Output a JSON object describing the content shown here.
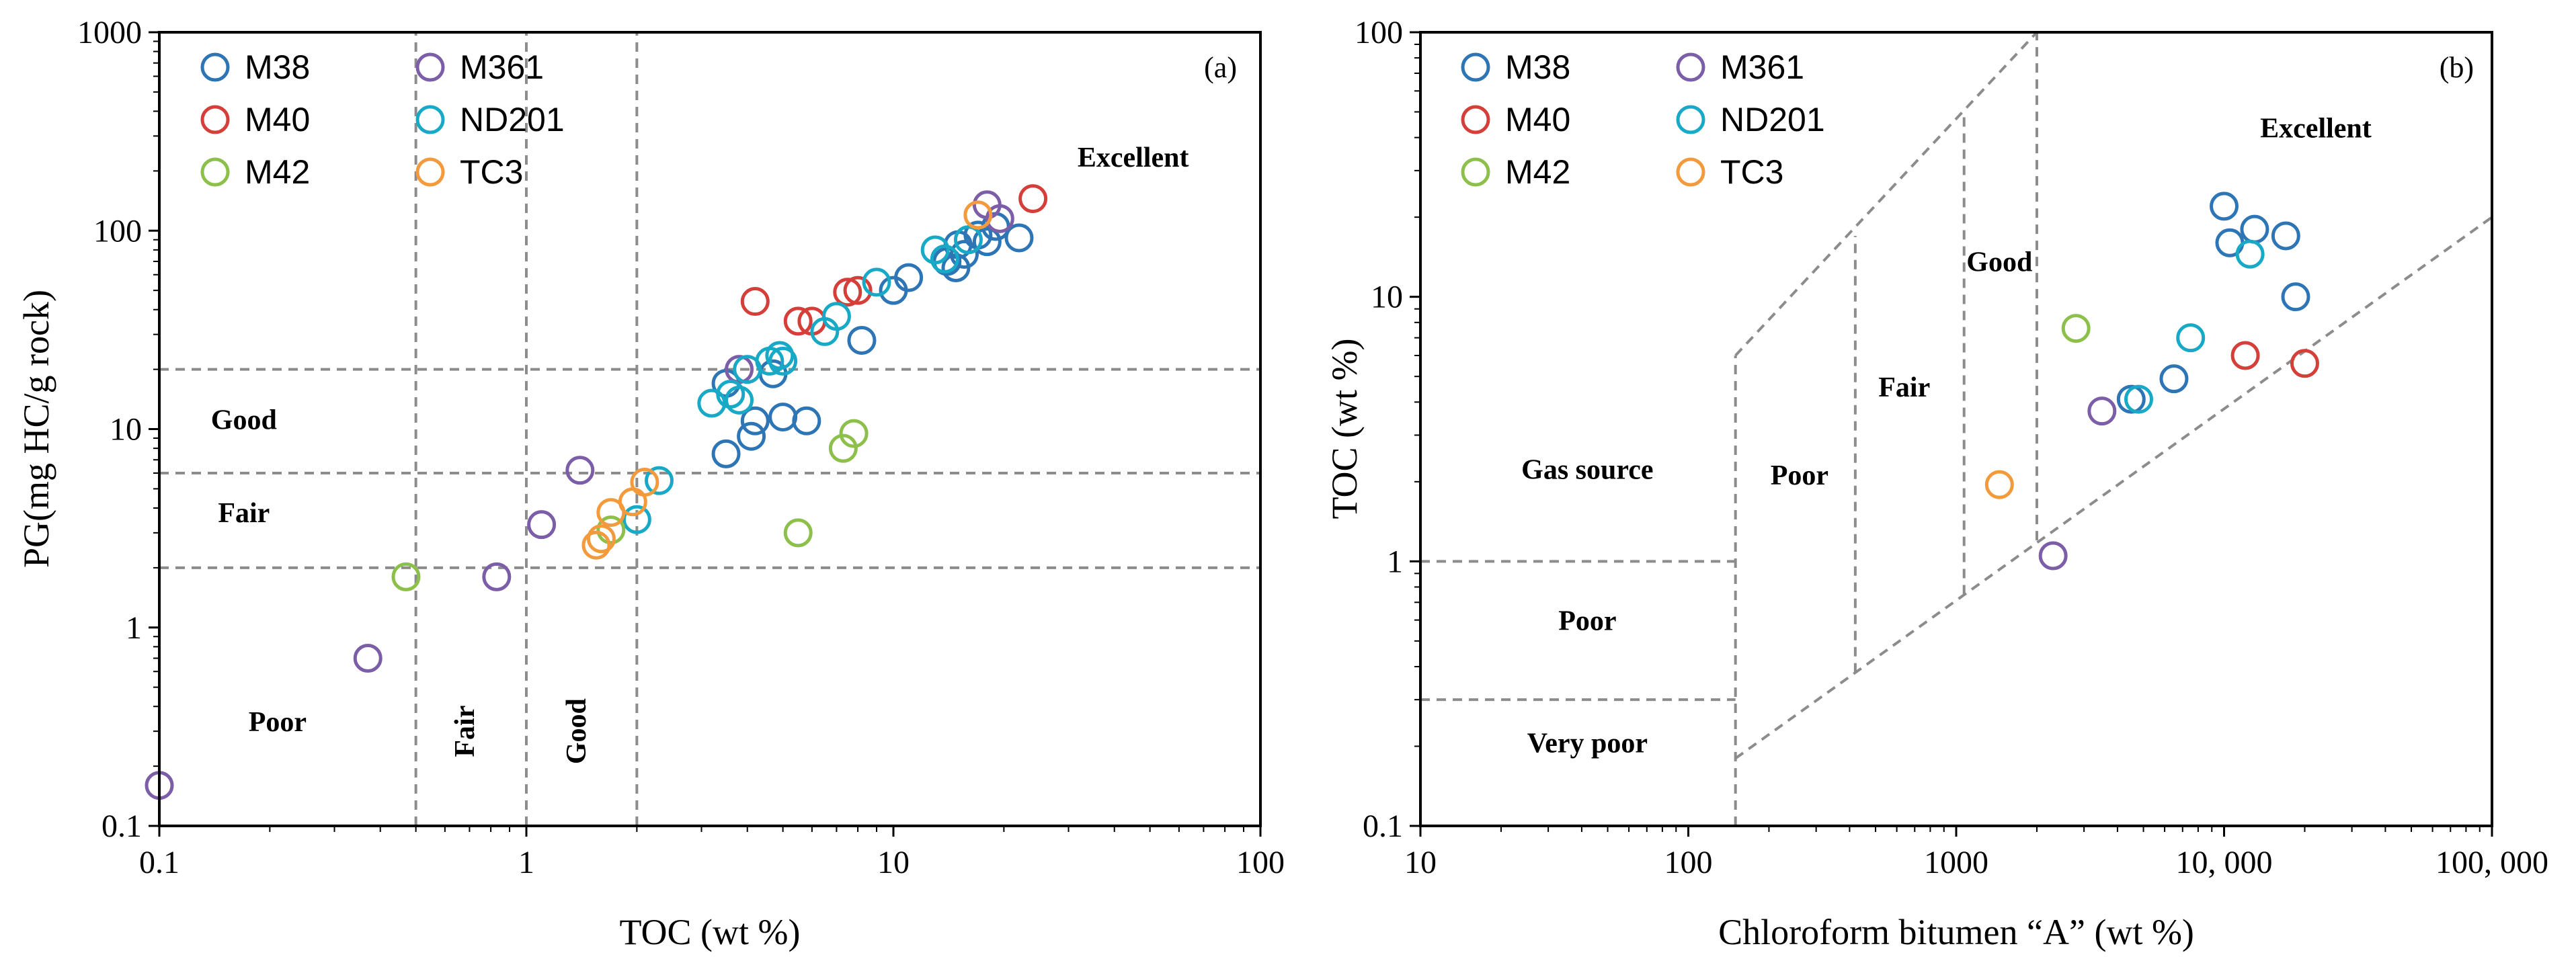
{
  "colors": {
    "M38": "#2e75b6",
    "M361": "#7b5ea7",
    "M40": "#d43f3a",
    "ND201": "#17a9c6",
    "M42": "#8dc04a",
    "TC3": "#f39b3c"
  },
  "chart_data": [
    {
      "id": "a",
      "type": "scatter",
      "panel_label": "(a)",
      "xlabel": "TOC (wt %)",
      "ylabel": "PG(mg HC/g rock)",
      "xscale": "log",
      "yscale": "log",
      "xlim": [
        0.1,
        100
      ],
      "ylim": [
        0.1,
        1000
      ],
      "x_ticks": [
        {
          "value": 0.1,
          "label": "0.1"
        },
        {
          "value": 1,
          "label": "1"
        },
        {
          "value": 10,
          "label": "10"
        },
        {
          "value": 100,
          "label": "100"
        }
      ],
      "y_ticks": [
        {
          "value": 0.1,
          "label": "0.1"
        },
        {
          "value": 1,
          "label": "1"
        },
        {
          "value": 10,
          "label": "10"
        },
        {
          "value": 100,
          "label": "100"
        },
        {
          "value": 1000,
          "label": "1000"
        }
      ],
      "legend_position": "top-left",
      "legend": [
        "M38",
        "M361",
        "M40",
        "ND201",
        "M42",
        "TC3"
      ],
      "boundary_lines": [
        {
          "kind": "vertical",
          "x": 0.5,
          "y_range": [
            0.1,
            1000
          ]
        },
        {
          "kind": "vertical",
          "x": 1,
          "y_range": [
            0.1,
            1000
          ]
        },
        {
          "kind": "vertical",
          "x": 2,
          "y_range": [
            0.1,
            1000
          ]
        },
        {
          "kind": "horizontal",
          "y": 2,
          "x_range": [
            0.1,
            100
          ]
        },
        {
          "kind": "horizontal",
          "y": 6,
          "x_range": [
            0.1,
            100
          ]
        },
        {
          "kind": "horizontal",
          "y": 20,
          "x_range": [
            0.1,
            100
          ]
        }
      ],
      "annotations": [
        {
          "text": "Excellent",
          "x": 45,
          "y": 210,
          "rotate": false
        },
        {
          "text": "Good",
          "x": 0.17,
          "y": 10,
          "rotate": false
        },
        {
          "text": "Fair",
          "x": 0.17,
          "y": 3.4,
          "rotate": false
        },
        {
          "text": "Poor",
          "x": 0.21,
          "y": 0.3,
          "rotate": false
        },
        {
          "text": "Fair",
          "x": 0.72,
          "y": 0.3,
          "rotate": true
        },
        {
          "text": "Good",
          "x": 1.45,
          "y": 0.3,
          "rotate": true
        }
      ],
      "series": [
        {
          "name": "M38",
          "points": [
            [
              3.5,
              7.5
            ],
            [
              4.1,
              9.2
            ],
            [
              4.2,
              11
            ],
            [
              5,
              11.5
            ],
            [
              5.8,
              11
            ],
            [
              3.5,
              17
            ],
            [
              4.7,
              19
            ],
            [
              8.2,
              28
            ],
            [
              10,
              50
            ],
            [
              11,
              58
            ],
            [
              14,
              70
            ],
            [
              14.8,
              65
            ],
            [
              15,
              85
            ],
            [
              15.6,
              76
            ],
            [
              17,
              95
            ],
            [
              18,
              88
            ],
            [
              19,
              105
            ],
            [
              22,
              92
            ]
          ]
        },
        {
          "name": "M361",
          "points": [
            [
              0.1,
              0.16
            ],
            [
              0.37,
              0.7
            ],
            [
              0.83,
              1.8
            ],
            [
              1.1,
              3.3
            ],
            [
              1.4,
              6.2
            ],
            [
              3.8,
              20
            ],
            [
              18,
              135
            ],
            [
              19.5,
              115
            ]
          ]
        },
        {
          "name": "M40",
          "points": [
            [
              4.2,
              44
            ],
            [
              5.5,
              35
            ],
            [
              6,
              35
            ],
            [
              7.5,
              49
            ],
            [
              8,
              50
            ],
            [
              24,
              145
            ]
          ]
        },
        {
          "name": "ND201",
          "points": [
            [
              2,
              3.5
            ],
            [
              2.3,
              5.5
            ],
            [
              3.2,
              13.5
            ],
            [
              3.6,
              15
            ],
            [
              3.8,
              14
            ],
            [
              4,
              20
            ],
            [
              4.6,
              22
            ],
            [
              4.9,
              23.5
            ],
            [
              5,
              22
            ],
            [
              6.5,
              31
            ],
            [
              7,
              37
            ],
            [
              9,
              55
            ],
            [
              13,
              80
            ],
            [
              13.8,
              72
            ],
            [
              16,
              90
            ]
          ]
        },
        {
          "name": "M42",
          "points": [
            [
              0.47,
              1.8
            ],
            [
              1.7,
              3.1
            ],
            [
              5.5,
              3
            ],
            [
              7.3,
              8
            ],
            [
              7.8,
              9.5
            ]
          ]
        },
        {
          "name": "TC3",
          "points": [
            [
              1.55,
              2.6
            ],
            [
              1.6,
              2.8
            ],
            [
              1.7,
              3.8
            ],
            [
              1.95,
              4.3
            ],
            [
              2.1,
              5.4
            ],
            [
              17,
              120
            ]
          ]
        }
      ]
    },
    {
      "id": "b",
      "type": "scatter",
      "panel_label": "(b)",
      "xlabel": "Chloroform bitumen “A” (wt %)",
      "ylabel": "TOC (wt %)",
      "xscale": "log",
      "yscale": "log",
      "xlim": [
        10,
        100000
      ],
      "ylim": [
        0.1,
        100
      ],
      "x_ticks": [
        {
          "value": 10,
          "label": "10"
        },
        {
          "value": 100,
          "label": "100"
        },
        {
          "value": 1000,
          "label": "1000"
        },
        {
          "value": 10000,
          "label": "10, 000"
        },
        {
          "value": 100000,
          "label": "100, 000"
        }
      ],
      "y_ticks": [
        {
          "value": 0.1,
          "label": "0.1"
        },
        {
          "value": 1,
          "label": "1"
        },
        {
          "value": 10,
          "label": "10"
        },
        {
          "value": 100,
          "label": "100"
        }
      ],
      "legend_position": "top-left",
      "legend": [
        "M38",
        "M361",
        "M40",
        "ND201",
        "M42",
        "TC3"
      ],
      "boundary_lines": [
        {
          "kind": "vertical",
          "x": 150,
          "y_range": [
            0.1,
            6
          ]
        },
        {
          "kind": "horizontal",
          "y": 1,
          "x_range": [
            10,
            150
          ]
        },
        {
          "kind": "horizontal",
          "y": 0.3,
          "x_range": [
            10,
            150
          ]
        },
        {
          "kind": "segment",
          "from": [
            150,
            6
          ],
          "to": [
            2000,
            100
          ]
        },
        {
          "kind": "segment",
          "from": [
            150,
            0.18
          ],
          "to": [
            100000,
            20
          ]
        },
        {
          "kind": "segment",
          "from": [
            420,
            0.38
          ],
          "to": [
            420,
            17
          ]
        },
        {
          "kind": "segment",
          "from": [
            1070,
            0.75
          ],
          "to": [
            1070,
            48
          ]
        },
        {
          "kind": "segment",
          "from": [
            2000,
            1.2
          ],
          "to": [
            2000,
            100
          ]
        }
      ],
      "annotations": [
        {
          "text": "Excellent",
          "x": 22000,
          "y": 40,
          "rotate": false
        },
        {
          "text": "Good",
          "x": 1450,
          "y": 12.5,
          "rotate": false
        },
        {
          "text": "Fair",
          "x": 640,
          "y": 4.2,
          "rotate": false
        },
        {
          "text": "Poor",
          "x": 260,
          "y": 1.95,
          "rotate": false
        },
        {
          "text": "Gas source",
          "x": 42,
          "y": 2.05,
          "rotate": false
        },
        {
          "text": "Poor",
          "x": 42,
          "y": 0.55,
          "rotate": false
        },
        {
          "text": "Very poor",
          "x": 42,
          "y": 0.19,
          "rotate": false
        }
      ],
      "series": [
        {
          "name": "M38",
          "points": [
            [
              10000,
              22
            ],
            [
              10500,
              16
            ],
            [
              13000,
              18
            ],
            [
              17000,
              17
            ],
            [
              18500,
              10
            ],
            [
              4500,
              4.1
            ],
            [
              6500,
              4.9
            ]
          ]
        },
        {
          "name": "M361",
          "points": [
            [
              2300,
              1.05
            ],
            [
              3500,
              3.7
            ]
          ]
        },
        {
          "name": "M40",
          "points": [
            [
              12000,
              6
            ],
            [
              20000,
              5.6
            ]
          ]
        },
        {
          "name": "ND201",
          "points": [
            [
              4800,
              4.1
            ],
            [
              7500,
              7
            ],
            [
              12500,
              14.5
            ]
          ]
        },
        {
          "name": "M42",
          "points": [
            [
              2800,
              7.6
            ]
          ]
        },
        {
          "name": "TC3",
          "points": [
            [
              1450,
              1.95
            ]
          ]
        }
      ]
    }
  ]
}
